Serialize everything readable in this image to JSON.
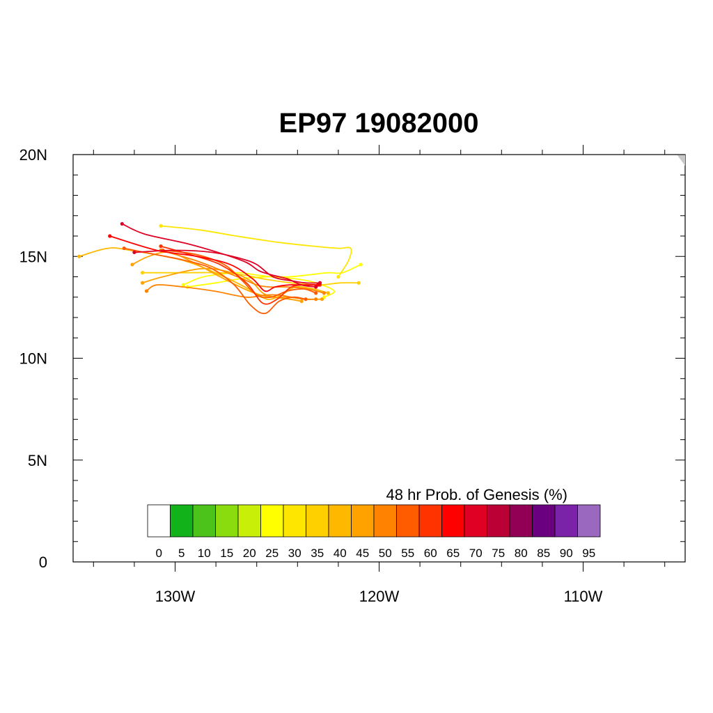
{
  "chart_data": {
    "type": "line",
    "title": "EP97 19082000",
    "xlabel": "",
    "ylabel": "",
    "xlim": [
      -135,
      -105
    ],
    "ylim": [
      0,
      20
    ],
    "x_ticks": [
      {
        "value": -130,
        "label": "130W"
      },
      {
        "value": -120,
        "label": "120W"
      },
      {
        "value": -110,
        "label": "110W"
      }
    ],
    "y_ticks": [
      {
        "value": 0,
        "label": "0"
      },
      {
        "value": 5,
        "label": "5N"
      },
      {
        "value": 10,
        "label": "10N"
      },
      {
        "value": 15,
        "label": "15N"
      },
      {
        "value": 20,
        "label": "20N"
      }
    ],
    "grid": false,
    "legend_placement": "bottom-center",
    "colorbar": {
      "title": "48 hr Prob. of Genesis (%)",
      "labels": [
        "0",
        "5",
        "10",
        "15",
        "20",
        "25",
        "30",
        "35",
        "40",
        "45",
        "50",
        "55",
        "60",
        "65",
        "70",
        "75",
        "80",
        "85",
        "90",
        "95"
      ],
      "colors": [
        "#ffffff",
        "#12b21a",
        "#4cc31b",
        "#8bdc0f",
        "#c8ef08",
        "#ffff00",
        "#ffe600",
        "#ffd000",
        "#ffb800",
        "#ffa200",
        "#ff8200",
        "#ff5c00",
        "#ff3300",
        "#ff0000",
        "#df0024",
        "#bb0035",
        "#920055",
        "#6a0080",
        "#7a22a8",
        "#9b68bf"
      ]
    },
    "series": [
      {
        "color": "#ffff00",
        "lon": [
          -122.7,
          -122.2,
          -123.1,
          -124.1,
          -125.3,
          -126.1,
          -127.0,
          -128.6,
          -129.6
        ],
        "lat": [
          13.0,
          13.3,
          13.7,
          13.9,
          14.0,
          14.1,
          14.2,
          14.0,
          13.6
        ]
      },
      {
        "color": "#ffff00",
        "lon": [
          -120.9,
          -121.8,
          -122.5,
          -123.4,
          -124.4,
          -125.5,
          -126.8,
          -128.0,
          -129.4
        ],
        "lat": [
          14.6,
          14.2,
          14.2,
          14.1,
          14.0,
          14.0,
          13.9,
          13.7,
          13.5
        ]
      },
      {
        "color": "#ffe600",
        "lon": [
          -122.0,
          -121.5,
          -121.4,
          -122.0,
          -123.2,
          -125.0,
          -127.0,
          -128.8,
          -130.7
        ],
        "lat": [
          14.0,
          14.8,
          15.4,
          15.4,
          15.5,
          15.7,
          16.0,
          16.3,
          16.5
        ]
      },
      {
        "color": "#ffd000",
        "lon": [
          -121.0,
          -121.9,
          -123.0,
          -124.3,
          -125.7,
          -126.7,
          -127.9,
          -129.6,
          -131.6
        ],
        "lat": [
          13.7,
          13.7,
          13.6,
          13.7,
          13.9,
          14.1,
          14.2,
          14.2,
          14.2
        ]
      },
      {
        "color": "#ffb800",
        "lon": [
          -122.5,
          -123.2,
          -124.1,
          -124.8,
          -125.5,
          -126.4,
          -127.6,
          -129.6,
          -132.2,
          -133.3,
          -134.7
        ],
        "lat": [
          13.2,
          13.4,
          13.5,
          13.1,
          12.9,
          13.4,
          14.0,
          14.8,
          15.3,
          15.4,
          15.0
        ]
      },
      {
        "color": "#ffa200",
        "lon": [
          -122.8,
          -123.5,
          -124.4,
          -125.1,
          -125.7,
          -126.3,
          -127.2,
          -128.7,
          -130.6,
          -131.6
        ],
        "lat": [
          12.9,
          12.9,
          13.0,
          13.0,
          13.2,
          13.8,
          14.2,
          14.4,
          14.0,
          13.7
        ]
      },
      {
        "color": "#ffa200",
        "lon": [
          -123.8,
          -124.4,
          -125.2,
          -125.8,
          -126.6,
          -127.8,
          -129.1,
          -130.3,
          -131.3,
          -132.1
        ],
        "lat": [
          12.8,
          12.9,
          13.0,
          13.1,
          13.4,
          14.0,
          14.7,
          15.2,
          15.0,
          14.6
        ]
      },
      {
        "color": "#ff8200",
        "lon": [
          -123.1,
          -123.7,
          -124.3,
          -124.9,
          -125.6,
          -126.5,
          -128.1,
          -129.6,
          -130.9,
          -131.4
        ],
        "lat": [
          12.9,
          12.9,
          13.0,
          13.1,
          13.1,
          13.0,
          13.3,
          13.5,
          13.6,
          13.3
        ]
      },
      {
        "color": "#ff8200",
        "lon": [
          -122.7,
          -123.5,
          -124.5,
          -125.4,
          -126.0,
          -126.7,
          -127.7,
          -129.0,
          -130.7
        ],
        "lat": [
          13.2,
          13.4,
          13.5,
          13.5,
          13.6,
          13.9,
          14.3,
          14.8,
          15.3
        ]
      },
      {
        "color": "#ff5c00",
        "lon": [
          -123.6,
          -124.2,
          -124.9,
          -125.6,
          -126.3,
          -127.1,
          -128.2,
          -129.5,
          -131.0,
          -132.5
        ],
        "lat": [
          12.9,
          13.0,
          12.8,
          12.2,
          12.6,
          13.6,
          14.4,
          14.8,
          15.1,
          15.4
        ]
      },
      {
        "color": "#ff5c00",
        "lon": [
          -123.1,
          -123.7,
          -124.5,
          -125.3,
          -126.0,
          -126.7,
          -127.6,
          -129.0,
          -130.6
        ],
        "lat": [
          13.2,
          13.4,
          13.3,
          13.0,
          13.1,
          13.8,
          14.6,
          15.1,
          15.3
        ]
      },
      {
        "color": "#ff3300",
        "lon": [
          -122.9,
          -123.5,
          -124.3,
          -125.0,
          -125.7,
          -126.5,
          -127.8,
          -129.3,
          -130.7
        ],
        "lat": [
          13.6,
          13.6,
          13.5,
          12.9,
          12.7,
          13.7,
          14.6,
          15.1,
          15.5
        ]
      },
      {
        "color": "#ff0000",
        "lon": [
          -123.0,
          -123.7,
          -124.4,
          -125.1,
          -125.6,
          -126.2,
          -127.3,
          -128.9,
          -130.9,
          -133.2
        ],
        "lat": [
          13.6,
          13.6,
          13.6,
          13.5,
          13.3,
          13.9,
          14.6,
          15.0,
          15.3,
          16.0
        ]
      },
      {
        "color": "#df0024",
        "lon": [
          -123.1,
          -123.8,
          -124.5,
          -125.3,
          -125.9,
          -126.5,
          -127.6,
          -129.3,
          -131.5,
          -132.6
        ],
        "lat": [
          13.5,
          13.6,
          13.9,
          14.1,
          14.3,
          14.7,
          15.1,
          15.6,
          16.1,
          16.6
        ]
      },
      {
        "color": "#df0024",
        "lon": [
          -122.9,
          -123.6,
          -124.3,
          -125.2,
          -126.0,
          -126.8,
          -128.2,
          -130.0,
          -132.0
        ],
        "lat": [
          13.7,
          13.7,
          13.8,
          14.0,
          14.6,
          14.9,
          15.2,
          15.3,
          15.2
        ]
      }
    ]
  }
}
